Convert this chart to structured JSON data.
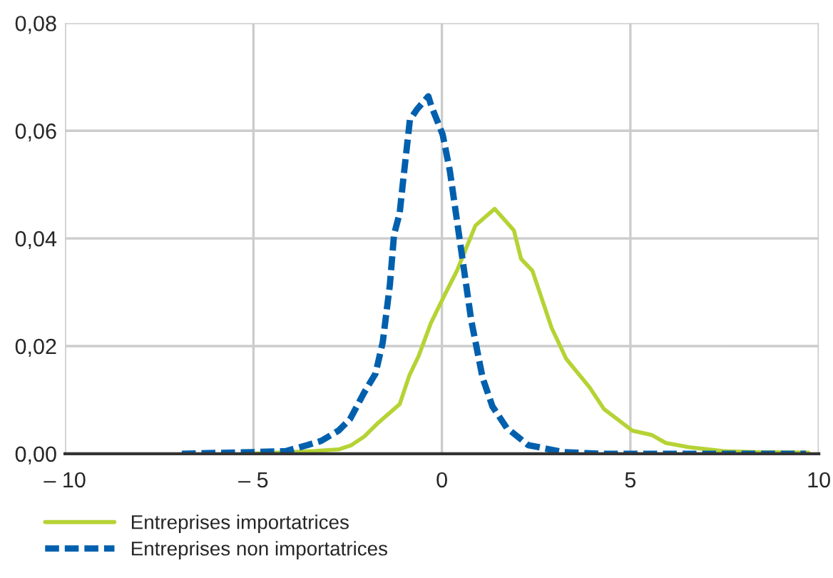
{
  "chart_data": {
    "type": "line",
    "xlim": [
      -10,
      10
    ],
    "xticks": [
      {
        "value": -10,
        "label": "– 10"
      },
      {
        "value": -5,
        "label": "– 5"
      },
      0,
      5,
      10
    ],
    "ylim": [
      0,
      0.08
    ],
    "yticks": [
      {
        "value": 0,
        "label": "0,00"
      },
      {
        "value": 0.02,
        "label": "0,02"
      },
      {
        "value": 0.04,
        "label": "0,04"
      },
      {
        "value": 0.06,
        "label": "0,06"
      },
      {
        "value": 0.08,
        "label": "0,08"
      }
    ],
    "grid": true,
    "legend": "bottom left",
    "marker": "none",
    "series": [
      {
        "name": "Entreprises importatrices",
        "color": "#b5d334",
        "line_style": "solid",
        "x": [
          -5.08,
          -3.38,
          -2.74,
          -2.4,
          -2.06,
          -1.68,
          -1.12,
          -0.86,
          -0.62,
          -0.29,
          0.08,
          0.4,
          0.89,
          1.4,
          1.91,
          2.1,
          2.4,
          2.91,
          3.3,
          3.92,
          4.3,
          5.05,
          5.56,
          5.94,
          6.56,
          7.45,
          8.3,
          9.72
        ],
        "values": [
          0,
          0.0005,
          0.0008,
          0.0016,
          0.0032,
          0.0058,
          0.0092,
          0.0146,
          0.0181,
          0.0243,
          0.0296,
          0.034,
          0.0424,
          0.0455,
          0.0415,
          0.0362,
          0.034,
          0.0234,
          0.0176,
          0.0123,
          0.0083,
          0.0043,
          0.0035,
          0.002,
          0.0012,
          0.0005,
          0.0003,
          0.0002
        ]
      },
      {
        "name": "Entreprises non importatrices",
        "color": "#0060ae",
        "line_style": "dashed",
        "x": [
          -6.9,
          -5,
          -4.13,
          -3.57,
          -3.2,
          -2.74,
          -2.44,
          -2.06,
          -1.76,
          -1.57,
          -1.38,
          -1.27,
          -1.12,
          -1.04,
          -0.85,
          -0.66,
          -0.36,
          -0.28,
          0.02,
          0.21,
          0.4,
          0.59,
          0.78,
          1.08,
          1.34,
          1.72,
          2.29,
          3.23,
          4.18,
          9.66
        ],
        "values": [
          0,
          0.0003,
          0.0005,
          0.0016,
          0.0024,
          0.0043,
          0.0064,
          0.0114,
          0.0149,
          0.0207,
          0.0314,
          0.0407,
          0.0447,
          0.05,
          0.062,
          0.064,
          0.0664,
          0.0646,
          0.0593,
          0.0526,
          0.0433,
          0.034,
          0.0247,
          0.0141,
          0.0088,
          0.0048,
          0.0016,
          0.0003,
          0,
          0
        ]
      }
    ]
  }
}
